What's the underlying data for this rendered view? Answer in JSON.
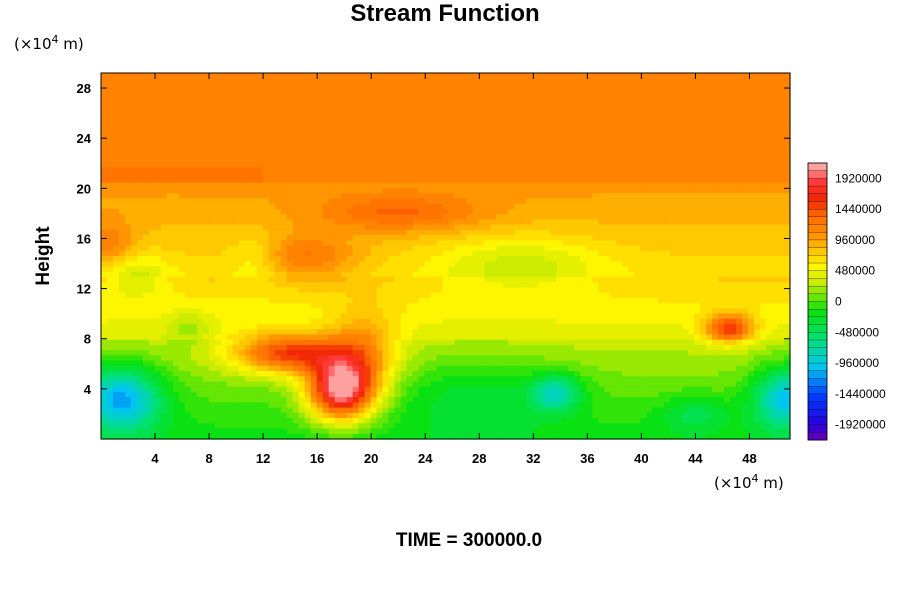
{
  "chart_data": {
    "type": "heatmap",
    "title": "Stream Function",
    "xlabel": "",
    "ylabel": "Height",
    "x_unit_prefix": "(×10",
    "x_unit_exp": "4",
    "x_unit_suffix": " m)",
    "y_unit_prefix": "(×10",
    "y_unit_exp": "4",
    "y_unit_suffix": " m)",
    "xlim": [
      0,
      51
    ],
    "ylim": [
      0,
      29.2
    ],
    "x_ticks": [
      4,
      8,
      12,
      16,
      20,
      24,
      28,
      32,
      36,
      40,
      44,
      48
    ],
    "y_ticks": [
      4,
      8,
      12,
      16,
      20,
      24,
      28
    ],
    "colorbar": {
      "min": -2160000,
      "max": 2160000,
      "tick_values": [
        1920000,
        1440000,
        960000,
        480000,
        0,
        -480000,
        -960000,
        -1440000,
        -1920000
      ],
      "tick_labels": [
        "1920000",
        "1440000",
        "960000",
        "480000",
        "0",
        "-480000",
        "-960000",
        "-1440000",
        "-1920000"
      ]
    },
    "features": [
      {
        "name": "upper-plateau",
        "y_from": 20.5,
        "y_to": 29.2,
        "value": 1250000
      },
      {
        "name": "red-maximum",
        "x": 17.7,
        "y": 3.9,
        "value": 2000000
      },
      {
        "name": "red-ridge",
        "x": 14.5,
        "y": 7.0,
        "value": 1500000
      },
      {
        "name": "red-patch-east",
        "x": 46.5,
        "y": 8.8,
        "value": 1550000
      },
      {
        "name": "blue-minimum-west",
        "x": 1.5,
        "y": 3.3,
        "value": -1000000
      },
      {
        "name": "blue-minimum-east",
        "x": 50.5,
        "y": 3.3,
        "value": -900000
      },
      {
        "name": "cyan-minimum-center",
        "x": 33.7,
        "y": 3.7,
        "value": -600000
      },
      {
        "name": "green-band-low",
        "y": 4.0,
        "value": -150000
      },
      {
        "name": "mid-layer",
        "y": 10.5,
        "value": 700000
      },
      {
        "name": "green-patch-upper",
        "x": 31,
        "y": 14,
        "value": 250000
      }
    ]
  },
  "footer": {
    "time_label": "TIME = 300000.0"
  }
}
